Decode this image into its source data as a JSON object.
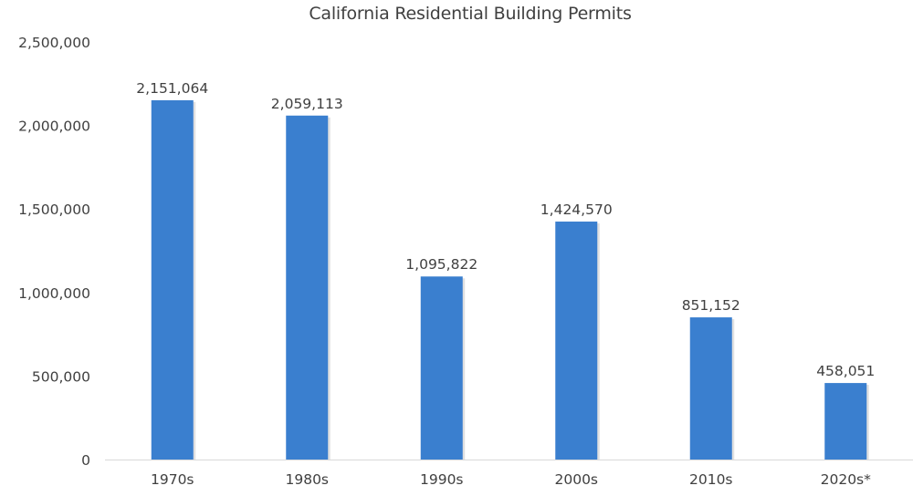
{
  "chart_data": {
    "type": "bar",
    "title": "California Residential Building Permits",
    "xlabel": "",
    "ylabel": "",
    "categories": [
      "1970s",
      "1980s",
      "1990s",
      "2000s",
      "2010s",
      "2020s*"
    ],
    "values": [
      2151064,
      2059113,
      1095822,
      1424570,
      851152,
      458051
    ],
    "data_labels": [
      "2,151,064",
      "2,059,113",
      "1,095,822",
      "1,424,570",
      "851,152",
      "458,051"
    ],
    "ylim": [
      0,
      2500000
    ],
    "yticks": [
      0,
      500000,
      1000000,
      1500000,
      2000000,
      2500000
    ],
    "ytick_labels": [
      "0",
      "500,000",
      "1,000,000",
      "1,500,000",
      "2,000,000",
      "2,500,000"
    ],
    "grid": false,
    "legend": "none",
    "bar_color": "#3a7fcf",
    "axis_color": "#d9d9d9"
  }
}
